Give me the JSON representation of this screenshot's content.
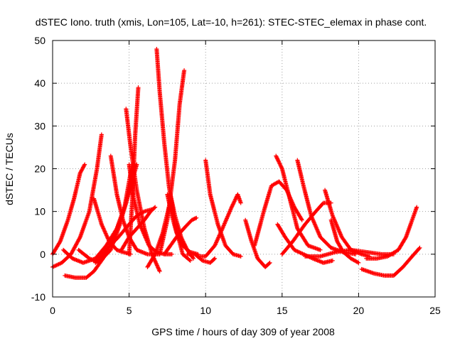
{
  "chart_data": {
    "type": "scatter",
    "title": "dSTEC Iono. truth (xmis, Lon=105, Lat=-10, h=261): STEC-STEC_elemax in phase cont.",
    "xlabel": "GPS time / hours of day 309 of year 2008",
    "ylabel": "dSTEC  / TECUs",
    "xlim": [
      0,
      25
    ],
    "ylim": [
      -10,
      50
    ],
    "xticks": [
      "0",
      "5",
      "10",
      "15",
      "20",
      "25"
    ],
    "yticks": [
      "-10",
      "0",
      "10",
      "20",
      "30",
      "40",
      "50"
    ],
    "grid": true,
    "marker": "plus",
    "color": "#ff0000",
    "series": [
      {
        "x": [
          0.0,
          0.5,
          1.0,
          1.4,
          1.8,
          2.1
        ],
        "y": [
          0,
          3,
          8,
          13,
          19,
          21
        ]
      },
      {
        "x": [
          0.0,
          0.6,
          1.2,
          1.8,
          2.4,
          2.9,
          3.2
        ],
        "y": [
          -3,
          -2,
          0,
          4,
          10,
          20,
          28
        ]
      },
      {
        "x": [
          0.7,
          1.3,
          2.0,
          2.8,
          3.5,
          4.2,
          4.7,
          5.0,
          5.2
        ],
        "y": [
          1,
          -1,
          -2,
          -1,
          2,
          6,
          11,
          17,
          21
        ]
      },
      {
        "x": [
          0.8,
          1.5,
          2.2,
          2.7,
          3.3,
          4.0,
          4.8,
          5.5
        ],
        "y": [
          -5,
          -5.5,
          -5.5,
          -4,
          -1,
          4,
          12,
          21
        ]
      },
      {
        "x": [
          1.7,
          2.4,
          3.0,
          3.8,
          4.4,
          4.8,
          5.3
        ],
        "y": [
          1,
          -1,
          -2,
          1,
          7,
          12,
          20
        ]
      },
      {
        "x": [
          2.7,
          3.2,
          3.7,
          4.2,
          4.6,
          5.1
        ],
        "y": [
          13,
          7,
          3,
          1,
          0.5,
          0
        ]
      },
      {
        "x": [
          2.8,
          3.5,
          4.3,
          5.0,
          5.5,
          6.0,
          6.5
        ],
        "y": [
          -2,
          1,
          4,
          7,
          9,
          10,
          10.5
        ]
      },
      {
        "x": [
          3.8,
          4.2,
          4.6,
          5.0,
          5.5,
          6.2,
          7.0
        ],
        "y": [
          23,
          14,
          8,
          4,
          1,
          0,
          0
        ]
      },
      {
        "x": [
          4.5,
          5.0,
          5.5,
          6.0,
          6.4,
          6.7
        ],
        "y": [
          1,
          4,
          6,
          8,
          10,
          11
        ]
      },
      {
        "x": [
          4.8,
          5.1,
          5.5,
          6.0,
          6.5,
          7.0
        ],
        "y": [
          34,
          25,
          15,
          6,
          0,
          -4
        ]
      },
      {
        "x": [
          5.0,
          5.3,
          5.7,
          6.3,
          6.8,
          7.3,
          7.8
        ],
        "y": [
          21,
          13,
          7,
          2,
          0.5,
          0,
          0
        ]
      },
      {
        "x": [
          5.0,
          5.2,
          5.4,
          5.6
        ],
        "y": [
          0,
          12,
          28,
          39
        ]
      },
      {
        "x": [
          6.2,
          6.7,
          7.2,
          7.6
        ],
        "y": [
          -3,
          0,
          5,
          11
        ]
      },
      {
        "x": [
          6.8,
          7.0,
          7.3,
          7.6,
          8.0,
          8.5,
          9.0
        ],
        "y": [
          48,
          38,
          26,
          16,
          7,
          0,
          -1.5
        ]
      },
      {
        "x": [
          7.0,
          7.5,
          8.0,
          8.3,
          8.6
        ],
        "y": [
          0,
          8,
          22,
          35,
          43
        ]
      },
      {
        "x": [
          7.5,
          7.8,
          8.1,
          8.5,
          9.0,
          9.5
        ],
        "y": [
          14,
          9,
          5,
          2,
          0.5,
          0
        ]
      },
      {
        "x": [
          7.7,
          8.0,
          8.4,
          8.8,
          9.2
        ],
        "y": [
          14,
          9,
          4,
          1,
          -1
        ]
      },
      {
        "x": [
          7.3,
          7.7,
          8.2,
          8.7,
          9.1,
          9.4
        ],
        "y": [
          0,
          2,
          4.5,
          6.5,
          8,
          8.5
        ]
      },
      {
        "x": [
          8.8,
          9.3,
          9.8,
          10.3,
          10.6
        ],
        "y": [
          0,
          0,
          -1.5,
          -2,
          -1
        ]
      },
      {
        "x": [
          10.0,
          10.3,
          10.8,
          11.3,
          11.8,
          12.3
        ],
        "y": [
          22,
          14,
          7,
          2,
          0,
          -0.5
        ]
      },
      {
        "x": [
          9.5,
          10.0,
          10.6,
          11.1,
          11.7,
          12.1,
          12.3
        ],
        "y": [
          -0.5,
          -0.5,
          2,
          6,
          11,
          14,
          12
        ]
      },
      {
        "x": [
          12.6,
          13.0,
          13.4,
          13.9,
          14.2
        ],
        "y": [
          8,
          3,
          -1,
          -3,
          -2
        ]
      },
      {
        "x": [
          13.2,
          13.8,
          14.3,
          14.8,
          15.3,
          15.8,
          16.3
        ],
        "y": [
          2,
          10,
          16,
          17,
          15,
          11,
          8
        ]
      },
      {
        "x": [
          14.6,
          15.0,
          15.5,
          16.0,
          16.7,
          17.5
        ],
        "y": [
          23,
          20,
          13,
          6,
          2,
          1
        ]
      },
      {
        "x": [
          14.7,
          15.2,
          15.8,
          16.4,
          17.0,
          17.7,
          18.3
        ],
        "y": [
          7,
          4,
          1,
          0,
          -1,
          -2,
          -1.5
        ]
      },
      {
        "x": [
          15.0,
          15.7,
          16.5,
          17.2,
          17.7,
          18.2
        ],
        "y": [
          0,
          3,
          7,
          10,
          12,
          12
        ]
      },
      {
        "x": [
          16.0,
          16.4,
          16.9,
          17.5,
          18.2,
          19.0,
          19.8
        ],
        "y": [
          22,
          16,
          9,
          4,
          1.5,
          0.5,
          0
        ]
      },
      {
        "x": [
          17.8,
          18.3,
          18.9,
          19.5,
          20.2,
          20.7
        ],
        "y": [
          15,
          9,
          4,
          1,
          0,
          -0.5
        ]
      },
      {
        "x": [
          18.2,
          18.6,
          19.0,
          19.5,
          20.0
        ],
        "y": [
          8,
          3,
          0.5,
          -1,
          -2
        ]
      },
      {
        "x": [
          16.5,
          17.5,
          18.5,
          19.5,
          20.5,
          21.5,
          22.3
        ],
        "y": [
          -0.5,
          -0.5,
          0.5,
          1,
          0.5,
          0,
          0
        ]
      },
      {
        "x": [
          20.5,
          21.2,
          21.9,
          22.6,
          23.1,
          23.5,
          23.8
        ],
        "y": [
          -1,
          -1,
          -0.5,
          1,
          4,
          8,
          11
        ]
      },
      {
        "x": [
          20.2,
          21.0,
          21.7,
          22.3,
          22.9,
          23.5,
          24.0
        ],
        "y": [
          -3.5,
          -4.5,
          -5,
          -5,
          -3,
          -0.5,
          1.5
        ]
      }
    ]
  }
}
